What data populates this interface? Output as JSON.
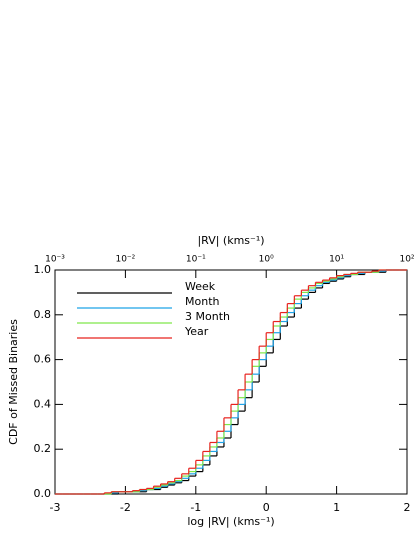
{
  "chart_data": {
    "type": "step",
    "xlabel": "log |RV| (kms⁻¹)",
    "ylabel": "CDF of Missed Binaries",
    "x2label": "|RV| (kms⁻¹)",
    "xlim": [
      -3,
      2
    ],
    "ylim": [
      0,
      1
    ],
    "xticks": [
      -3,
      -2,
      -1,
      0,
      1,
      2
    ],
    "yticks": [
      {
        "value": 0,
        "label": "0.0"
      },
      0.2,
      0.4,
      0.6,
      0.8,
      {
        "value": 1,
        "label": "1.0"
      }
    ],
    "x2ticks": [
      {
        "value": -3,
        "label": "10⁻³"
      },
      {
        "value": -2,
        "label": "10⁻²"
      },
      {
        "value": -1,
        "label": "10⁻¹"
      },
      {
        "value": 0,
        "label": "10⁰"
      },
      {
        "value": 1,
        "label": "10¹"
      },
      {
        "value": 2,
        "label": "10²"
      }
    ],
    "legend": "upper left",
    "x": [
      -3.0,
      -2.9,
      -2.8,
      -2.7,
      -2.6,
      -2.5,
      -2.4,
      -2.3,
      -2.2,
      -2.1,
      -2.0,
      -1.9,
      -1.8,
      -1.7,
      -1.6,
      -1.5,
      -1.4,
      -1.3,
      -1.2,
      -1.1,
      -1.0,
      -0.9,
      -0.8,
      -0.7,
      -0.6,
      -0.5,
      -0.4,
      -0.3,
      -0.2,
      -0.1,
      0.0,
      0.1,
      0.2,
      0.3,
      0.4,
      0.5,
      0.6,
      0.7,
      0.8,
      0.9,
      1.0,
      1.1,
      1.2,
      1.3,
      1.4,
      1.5,
      1.6,
      1.7,
      1.8,
      1.9,
      2.0
    ],
    "series": [
      {
        "name": "Week",
        "color": "#000000",
        "values": [
          0,
          0,
          0,
          0,
          0,
          0,
          0,
          0,
          0,
          0.01,
          0.01,
          0.01,
          0.01,
          0.02,
          0.02,
          0.03,
          0.04,
          0.05,
          0.06,
          0.08,
          0.1,
          0.13,
          0.17,
          0.21,
          0.25,
          0.31,
          0.37,
          0.43,
          0.5,
          0.57,
          0.63,
          0.69,
          0.75,
          0.79,
          0.83,
          0.87,
          0.9,
          0.92,
          0.94,
          0.95,
          0.96,
          0.97,
          0.98,
          0.98,
          0.99,
          0.99,
          0.99,
          1,
          1,
          1,
          1
        ]
      },
      {
        "name": "Month",
        "color": "#1fa3e8",
        "values": [
          0,
          0,
          0,
          0,
          0,
          0,
          0,
          0,
          0.005,
          0.01,
          0.01,
          0.01,
          0.015,
          0.02,
          0.025,
          0.035,
          0.045,
          0.055,
          0.07,
          0.09,
          0.115,
          0.15,
          0.19,
          0.23,
          0.28,
          0.34,
          0.4,
          0.465,
          0.535,
          0.6,
          0.66,
          0.72,
          0.77,
          0.81,
          0.85,
          0.885,
          0.91,
          0.93,
          0.945,
          0.955,
          0.965,
          0.975,
          0.98,
          0.985,
          0.99,
          0.99,
          0.995,
          1,
          1,
          1,
          1
        ]
      },
      {
        "name": "3 Month",
        "color": "#7fe84a",
        "values": [
          0,
          0,
          0,
          0,
          0,
          0,
          0,
          0,
          0.01,
          0.01,
          0.01,
          0.01,
          0.02,
          0.02,
          0.03,
          0.04,
          0.05,
          0.06,
          0.08,
          0.1,
          0.13,
          0.17,
          0.21,
          0.25,
          0.31,
          0.37,
          0.43,
          0.5,
          0.57,
          0.63,
          0.69,
          0.75,
          0.79,
          0.83,
          0.87,
          0.9,
          0.92,
          0.94,
          0.95,
          0.96,
          0.97,
          0.98,
          0.98,
          0.99,
          0.99,
          0.99,
          1,
          1,
          1,
          1,
          1
        ]
      },
      {
        "name": "Year",
        "color": "#e8231f",
        "values": [
          0,
          0,
          0,
          0,
          0,
          0,
          0,
          0.005,
          0.01,
          0.01,
          0.01,
          0.015,
          0.02,
          0.025,
          0.035,
          0.045,
          0.055,
          0.07,
          0.09,
          0.115,
          0.15,
          0.19,
          0.23,
          0.28,
          0.34,
          0.4,
          0.465,
          0.535,
          0.6,
          0.66,
          0.72,
          0.77,
          0.81,
          0.85,
          0.885,
          0.91,
          0.93,
          0.945,
          0.955,
          0.965,
          0.975,
          0.98,
          0.985,
          0.99,
          0.99,
          0.995,
          1,
          1,
          1,
          1,
          1
        ]
      }
    ]
  }
}
